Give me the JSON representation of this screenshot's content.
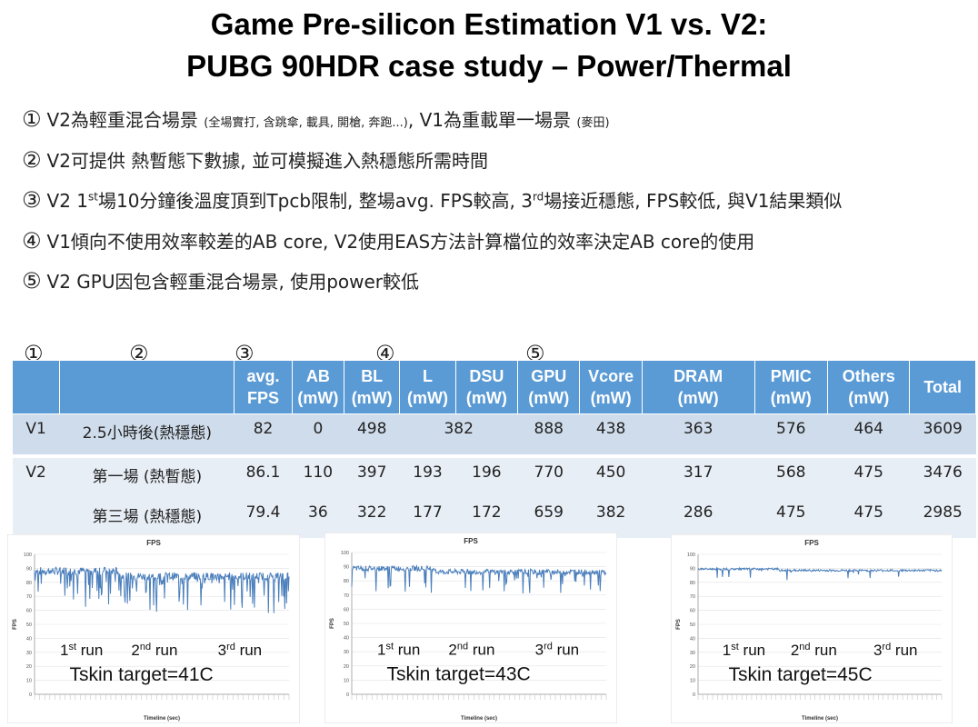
{
  "title": {
    "line1": "Game Pre-silicon Estimation V1 vs. V2:",
    "line2": "PUBG 90HDR case study – Power/Thermal"
  },
  "bullets": [
    {
      "num": "①",
      "pre": "V2為輕重混合場景 ",
      "small": "(全場實打, 含跳傘, 載具, 開槍, 奔跑...)",
      "mid": ", V1為重載單一場景 ",
      "small2": "(麥田)"
    },
    {
      "num": "②",
      "text": "V2可提供 熱暫態下數據, 並可模擬進入熱穩態所需時間"
    },
    {
      "num": "③",
      "a": "V2 1",
      "sup1": "st",
      "b": "場10分鐘後溫度頂到Tpcb限制, 整場avg. FPS較高, 3",
      "sup2": "rd",
      "c": "場接近穩態, FPS較低, 與V1結果類似"
    },
    {
      "num": "④",
      "text": "V1傾向不使用效率較差的AB core, V2使用EAS方法計算檔位的效率決定AB core的使用"
    },
    {
      "num": "⑤",
      "text": "V2 GPU因包含輕重混合場景, 使用power較低"
    }
  ],
  "column_markers": [
    "①",
    "②",
    "③",
    "④",
    "⑤"
  ],
  "table": {
    "headers": [
      {
        "l1": "",
        "l2": ""
      },
      {
        "l1": "",
        "l2": ""
      },
      {
        "l1": "avg.",
        "l2": "FPS"
      },
      {
        "l1": "AB",
        "l2": "(mW)"
      },
      {
        "l1": "BL",
        "l2": "(mW)"
      },
      {
        "l1": "L",
        "l2": "(mW)"
      },
      {
        "l1": "DSU",
        "l2": "(mW)"
      },
      {
        "l1": "GPU",
        "l2": "(mW)"
      },
      {
        "l1": "Vcore",
        "l2": "(mW)"
      },
      {
        "l1": "DRAM",
        "l2": "(mW)"
      },
      {
        "l1": "PMIC",
        "l2": "(mW)"
      },
      {
        "l1": "Others",
        "l2": "(mW)"
      },
      {
        "l1": "Total",
        "l2": ""
      }
    ],
    "rows": [
      {
        "ver": "V1",
        "cond": "2.5小時後(熱穩態)",
        "fps": "82",
        "ab": "0",
        "bl": "498",
        "l_dsu": "382",
        "gpu": "888",
        "vcore": "438",
        "dram": "363",
        "pmic": "576",
        "others": "464",
        "total": "3609"
      },
      {
        "ver": "V2",
        "cond": "第一場 (熱暫態)",
        "fps": "86.1",
        "ab": "110",
        "bl": "397",
        "l": "193",
        "dsu": "196",
        "gpu": "770",
        "vcore": "450",
        "dram": "317",
        "pmic": "568",
        "others": "475",
        "total": "3476"
      },
      {
        "ver": "",
        "cond": "第三場 (熱穩態)",
        "fps": "79.4",
        "ab": "36",
        "bl": "322",
        "l": "177",
        "dsu": "172",
        "gpu": "659",
        "vcore": "382",
        "dram": "286",
        "pmic": "475",
        "others": "475",
        "total": "2985"
      }
    ]
  },
  "charts": [
    {
      "title": "FPS",
      "ylabel": "FPS",
      "xlabel": "Timeline (sec)",
      "yticks": [
        "100",
        "90",
        "80",
        "70",
        "60",
        "50",
        "40",
        "30",
        "20",
        "10",
        "0"
      ],
      "run1": "1",
      "run1sup": "st",
      "run2": "2",
      "run2sup": "nd",
      "run3": "3",
      "run3sup": "rd",
      "runword": " run",
      "target": "Tskin target=41C",
      "line_color": "#4a7ebb",
      "variability": 0.95
    },
    {
      "title": "FPS",
      "ylabel": "FPS",
      "xlabel": "Timeline (sec)",
      "yticks": [
        "100",
        "90",
        "80",
        "70",
        "60",
        "50",
        "40",
        "30",
        "20",
        "10",
        "0"
      ],
      "run1": "1",
      "run1sup": "st",
      "run2": "2",
      "run2sup": "nd",
      "run3": "3",
      "run3sup": "rd",
      "runword": " run",
      "target": "Tskin target=43C",
      "line_color": "#4a7ebb",
      "variability": 0.6
    },
    {
      "title": "FPS",
      "ylabel": "FPS",
      "xlabel": "Timeline (sec)",
      "yticks": [
        "100",
        "90",
        "80",
        "70",
        "60",
        "50",
        "40",
        "30",
        "20",
        "10",
        "0"
      ],
      "run1": "1",
      "run1sup": "st",
      "run2": "2",
      "run2sup": "nd",
      "run3": "3",
      "run3sup": "rd",
      "runword": " run",
      "target": "Tskin target=45C",
      "line_color": "#4a7ebb",
      "variability": 0.25
    }
  ]
}
